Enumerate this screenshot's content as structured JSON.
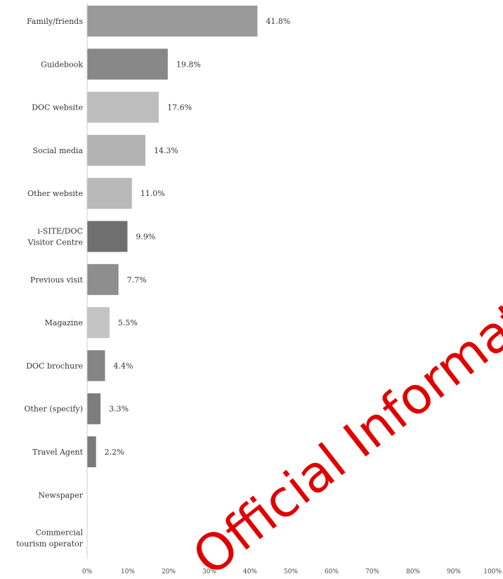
{
  "chart_data": {
    "type": "bar",
    "orientation": "horizontal",
    "categories": [
      [
        "Family/friends"
      ],
      [
        "Guidebook"
      ],
      [
        "DOC website"
      ],
      [
        "Social media"
      ],
      [
        "Other website"
      ],
      [
        "i-SITE/DOC",
        "Visitor Centre"
      ],
      [
        "Previous visit"
      ],
      [
        "Magazine"
      ],
      [
        "DOC brochure"
      ],
      [
        "Other (specify)"
      ],
      [
        "Travel Agent"
      ],
      [
        "Newspaper"
      ],
      [
        "Commercial",
        "tourism operator"
      ]
    ],
    "values": [
      41.8,
      19.8,
      17.6,
      14.3,
      11.0,
      9.9,
      7.7,
      5.5,
      4.4,
      3.3,
      2.2,
      null,
      null
    ],
    "value_labels": [
      "41.8%",
      "19.8%",
      "17.6%",
      "14.3%",
      "11.0%",
      "9.9%",
      "7.7%",
      "5.5%",
      "4.4%",
      "3.3%",
      "2.2%",
      "",
      ""
    ],
    "bar_colors": [
      "#9a9a9a",
      "#888888",
      "#bdbdbd",
      "#b3b3b3",
      "#b9b9b9",
      "#6f6f6f",
      "#8e8e8e",
      "#c3c3c3",
      "#858585",
      "#7d7d7d",
      "#7a7a7a",
      "#999999",
      "#999999"
    ],
    "xlim": [
      0,
      100
    ],
    "x_ticks": [
      "0%",
      "10%",
      "20%",
      "30%",
      "40%",
      "50%",
      "60%",
      "70%",
      "80%",
      "90%",
      "100%"
    ],
    "grid": false,
    "title": "",
    "xlabel": "",
    "ylabel": ""
  },
  "watermark": {
    "text": "Official Information",
    "color": "#e00000"
  }
}
